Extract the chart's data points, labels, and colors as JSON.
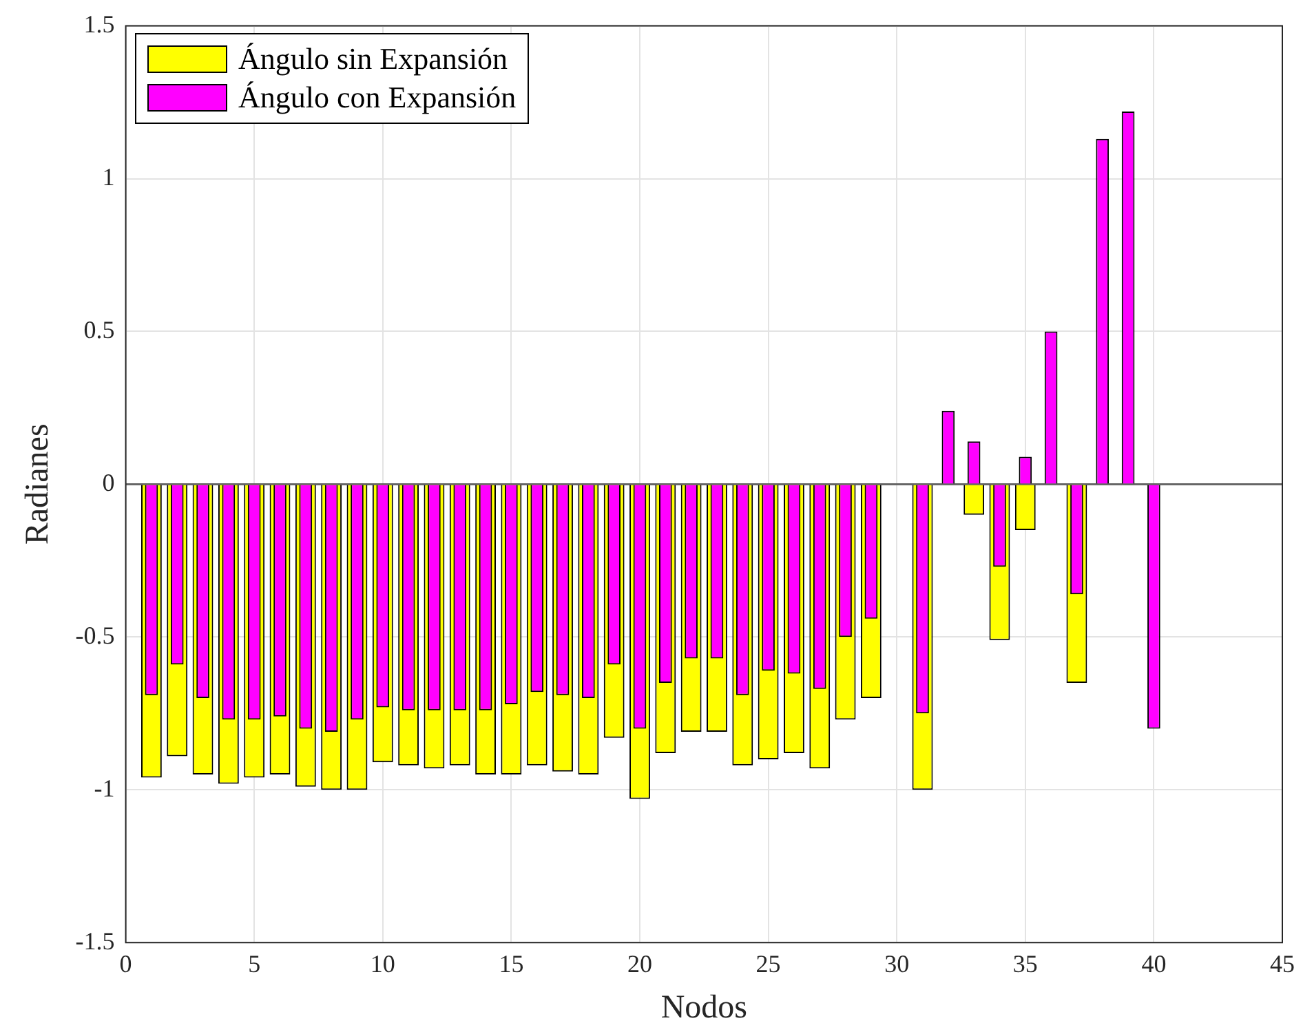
{
  "chart_data": {
    "type": "bar",
    "xlabel": "Nodos",
    "ylabel": "Radianes",
    "x": [
      1,
      2,
      3,
      4,
      5,
      6,
      7,
      8,
      9,
      10,
      11,
      12,
      13,
      14,
      15,
      16,
      17,
      18,
      19,
      20,
      21,
      22,
      23,
      24,
      25,
      26,
      27,
      28,
      29,
      30,
      31,
      32,
      33,
      34,
      35,
      36,
      37,
      38,
      39,
      40
    ],
    "series": [
      {
        "name": "Ángulo sin Expansión",
        "color": "#ffff00",
        "values": [
          -0.96,
          -0.89,
          -0.95,
          -0.98,
          -0.96,
          -0.95,
          -0.99,
          -1.0,
          -1.0,
          -0.91,
          -0.92,
          -0.93,
          -0.92,
          -0.95,
          -0.95,
          -0.92,
          -0.94,
          -0.95,
          -0.83,
          -1.03,
          -0.88,
          -0.81,
          -0.81,
          -0.92,
          -0.9,
          -0.88,
          -0.93,
          -0.77,
          -0.7,
          null,
          -1.0,
          null,
          -0.1,
          -0.51,
          -0.15,
          null,
          -0.65,
          null,
          null,
          null
        ]
      },
      {
        "name": "Ángulo con Expansión",
        "color": "#ff00ff",
        "values": [
          -0.69,
          -0.59,
          -0.7,
          -0.77,
          -0.77,
          -0.76,
          -0.8,
          -0.81,
          -0.77,
          -0.73,
          -0.74,
          -0.74,
          -0.74,
          -0.74,
          -0.72,
          -0.68,
          -0.69,
          -0.7,
          -0.59,
          -0.8,
          -0.65,
          -0.57,
          -0.57,
          -0.69,
          -0.61,
          -0.62,
          -0.67,
          -0.5,
          -0.44,
          null,
          -0.75,
          0.24,
          0.14,
          -0.27,
          0.09,
          0.5,
          -0.36,
          1.13,
          1.22,
          -0.8
        ]
      }
    ],
    "xlim": [
      0,
      45
    ],
    "xticks": [
      0,
      5,
      10,
      15,
      20,
      25,
      30,
      35,
      40,
      45
    ],
    "ylim": [
      -1.5,
      1.5
    ],
    "yticks": [
      -1.5,
      -1,
      -0.5,
      0,
      0.5,
      1,
      1.5
    ],
    "grid": true,
    "legend": "top left"
  }
}
